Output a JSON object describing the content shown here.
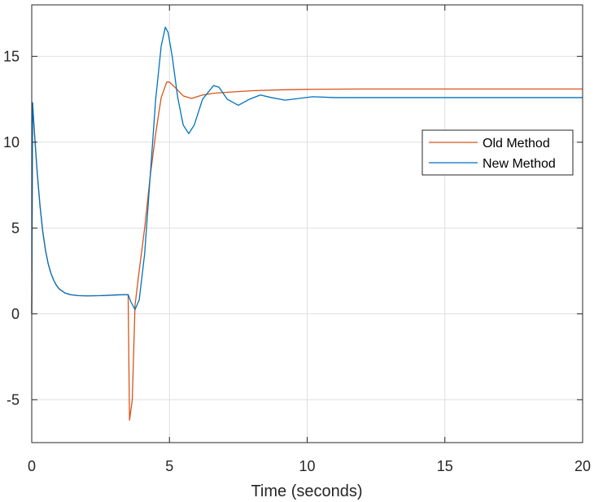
{
  "chart_data": {
    "type": "line",
    "title": "",
    "xlabel": "Time (seconds)",
    "ylabel": "",
    "xlim": [
      0,
      20
    ],
    "ylim": [
      -7.5,
      18
    ],
    "xticks": [
      0,
      5,
      10,
      15,
      20
    ],
    "xtick_labels": [
      "0",
      "5",
      "10",
      "15",
      "20"
    ],
    "yticks": [
      -5,
      0,
      5,
      10,
      15
    ],
    "ytick_labels": [
      "-5",
      "0",
      "5",
      "10",
      "15"
    ],
    "grid": true,
    "legend_position": "right",
    "series": [
      {
        "name": "Old Method",
        "color": "#d95319",
        "points": [
          [
            0,
            0
          ],
          [
            0.03,
            12.3
          ],
          [
            0.1,
            10.5
          ],
          [
            0.2,
            8.2
          ],
          [
            0.3,
            6.3
          ],
          [
            0.4,
            4.8
          ],
          [
            0.5,
            3.7
          ],
          [
            0.6,
            2.9
          ],
          [
            0.7,
            2.35
          ],
          [
            0.8,
            1.95
          ],
          [
            0.9,
            1.65
          ],
          [
            1.0,
            1.45
          ],
          [
            1.2,
            1.22
          ],
          [
            1.4,
            1.12
          ],
          [
            1.7,
            1.06
          ],
          [
            2.0,
            1.05
          ],
          [
            2.5,
            1.06
          ],
          [
            3.0,
            1.1
          ],
          [
            3.5,
            1.12
          ],
          [
            3.55,
            -6.2
          ],
          [
            3.65,
            -5.0
          ],
          [
            3.75,
            0.5
          ],
          [
            3.9,
            2.5
          ],
          [
            4.1,
            5.0
          ],
          [
            4.3,
            8.0
          ],
          [
            4.5,
            10.5
          ],
          [
            4.7,
            12.6
          ],
          [
            4.9,
            13.5
          ],
          [
            5.0,
            13.5
          ],
          [
            5.2,
            13.2
          ],
          [
            5.5,
            12.7
          ],
          [
            5.8,
            12.55
          ],
          [
            6.2,
            12.75
          ],
          [
            6.6,
            12.85
          ],
          [
            7.0,
            12.9
          ],
          [
            8.0,
            13.0
          ],
          [
            9.0,
            13.05
          ],
          [
            10.0,
            13.08
          ],
          [
            12.0,
            13.1
          ],
          [
            15.0,
            13.1
          ],
          [
            20.0,
            13.1
          ]
        ]
      },
      {
        "name": "New Method",
        "color": "#0072bd",
        "points": [
          [
            0,
            0
          ],
          [
            0.03,
            12.3
          ],
          [
            0.1,
            10.5
          ],
          [
            0.2,
            8.2
          ],
          [
            0.3,
            6.3
          ],
          [
            0.4,
            4.8
          ],
          [
            0.5,
            3.7
          ],
          [
            0.6,
            2.9
          ],
          [
            0.7,
            2.35
          ],
          [
            0.8,
            1.95
          ],
          [
            0.9,
            1.65
          ],
          [
            1.0,
            1.45
          ],
          [
            1.2,
            1.22
          ],
          [
            1.4,
            1.12
          ],
          [
            1.7,
            1.06
          ],
          [
            2.0,
            1.05
          ],
          [
            2.5,
            1.06
          ],
          [
            3.0,
            1.1
          ],
          [
            3.5,
            1.12
          ],
          [
            3.6,
            0.7
          ],
          [
            3.75,
            0.25
          ],
          [
            3.9,
            0.8
          ],
          [
            4.1,
            3.5
          ],
          [
            4.3,
            8.0
          ],
          [
            4.5,
            12.5
          ],
          [
            4.7,
            15.6
          ],
          [
            4.85,
            16.7
          ],
          [
            4.95,
            16.4
          ],
          [
            5.1,
            15.0
          ],
          [
            5.3,
            12.6
          ],
          [
            5.5,
            11.0
          ],
          [
            5.7,
            10.5
          ],
          [
            5.9,
            11.0
          ],
          [
            6.2,
            12.5
          ],
          [
            6.6,
            13.3
          ],
          [
            6.8,
            13.2
          ],
          [
            7.1,
            12.5
          ],
          [
            7.5,
            12.15
          ],
          [
            7.9,
            12.5
          ],
          [
            8.3,
            12.75
          ],
          [
            8.7,
            12.6
          ],
          [
            9.2,
            12.45
          ],
          [
            9.7,
            12.55
          ],
          [
            10.2,
            12.65
          ],
          [
            11.0,
            12.6
          ],
          [
            13.0,
            12.6
          ],
          [
            15.0,
            12.6
          ],
          [
            20.0,
            12.6
          ]
        ]
      }
    ]
  }
}
